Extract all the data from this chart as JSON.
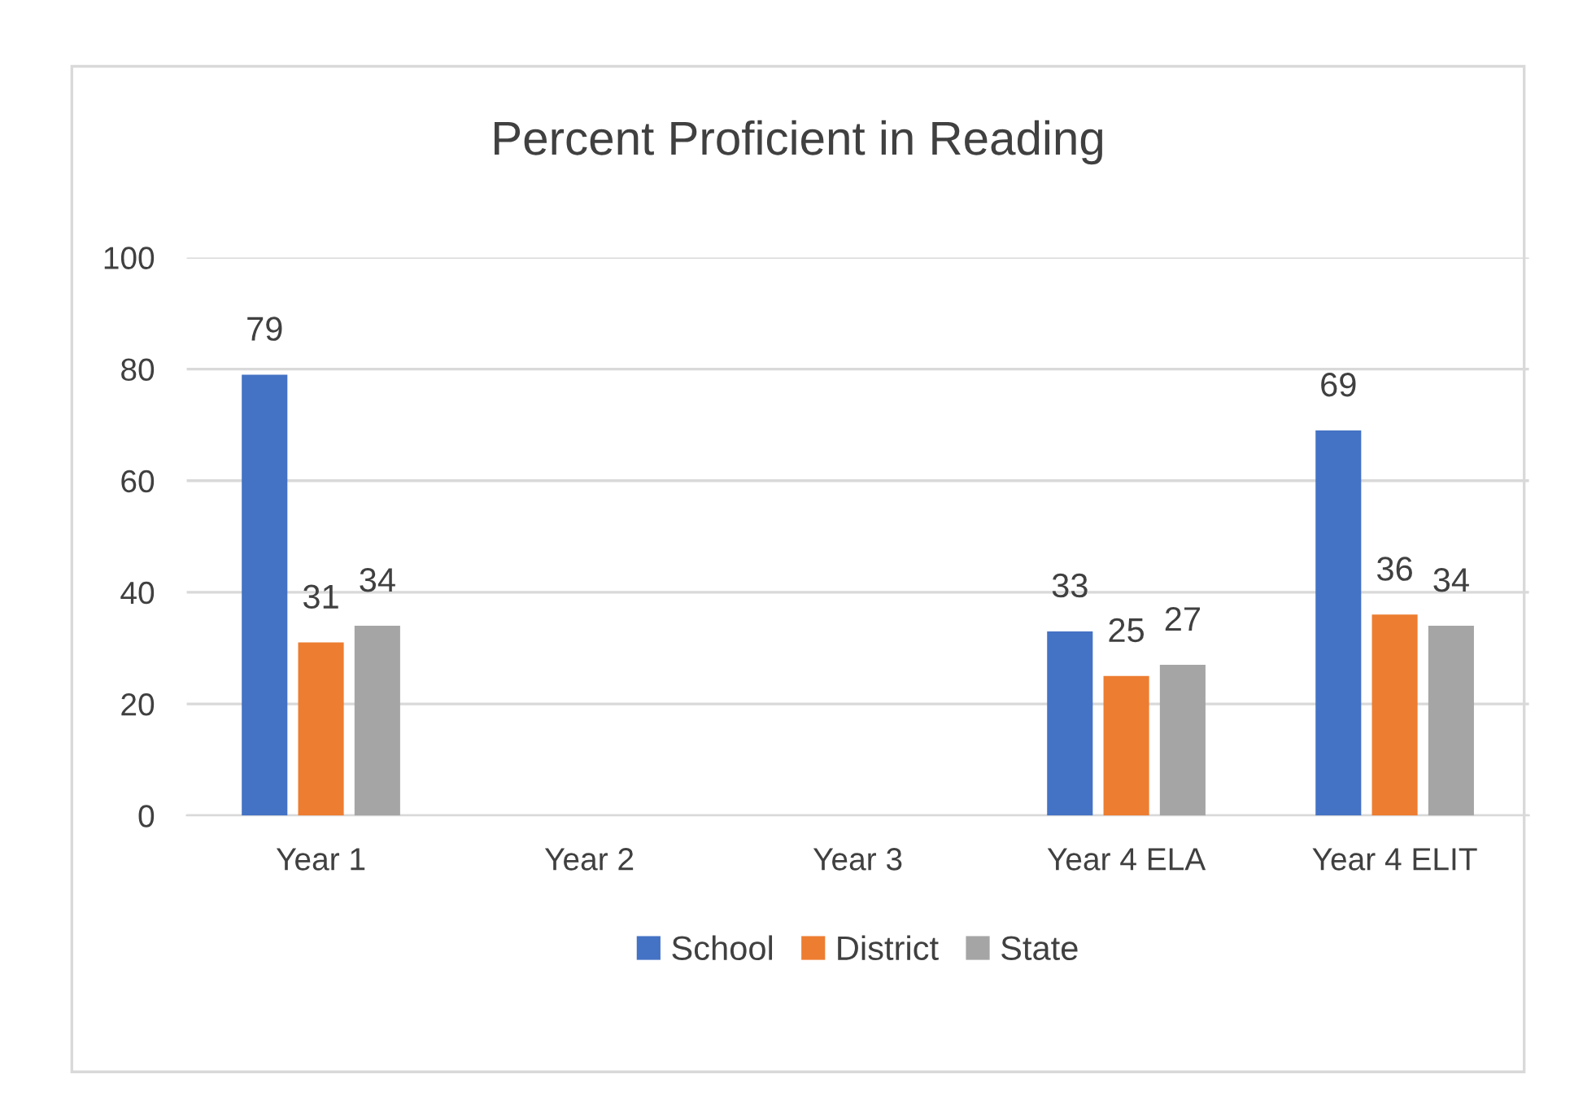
{
  "chart_data": {
    "type": "bar",
    "title": "Percent Proficient in Reading",
    "categories": [
      "Year 1",
      "Year 2",
      "Year 3",
      "Year 4 ELA",
      "Year 4 ELIT"
    ],
    "series": [
      {
        "name": "School",
        "color": "#4472c4",
        "values": [
          79,
          null,
          null,
          33,
          69
        ]
      },
      {
        "name": "District",
        "color": "#ed7d31",
        "values": [
          31,
          null,
          null,
          25,
          36
        ]
      },
      {
        "name": "State",
        "color": "#a5a5a5",
        "values": [
          34,
          null,
          null,
          27,
          34
        ]
      }
    ],
    "ylim": [
      0,
      100
    ],
    "yticks": [
      0,
      20,
      40,
      60,
      80,
      100
    ],
    "grid": "y",
    "legend": "bottom",
    "data_labels": true
  }
}
